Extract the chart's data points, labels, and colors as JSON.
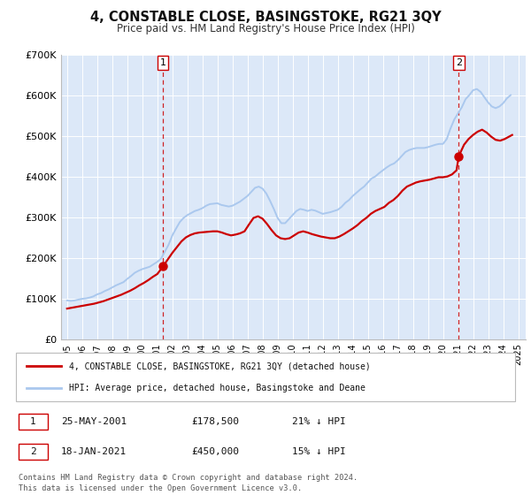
{
  "title": "4, CONSTABLE CLOSE, BASINGSTOKE, RG21 3QY",
  "subtitle": "Price paid vs. HM Land Registry's House Price Index (HPI)",
  "background_color": "#ffffff",
  "plot_bg_color": "#dce8f8",
  "grid_color": "#ffffff",
  "ylim": [
    0,
    700000
  ],
  "yticks": [
    0,
    100000,
    200000,
    300000,
    400000,
    500000,
    600000,
    700000
  ],
  "ytick_labels": [
    "£0",
    "£100K",
    "£200K",
    "£300K",
    "£400K",
    "£500K",
    "£600K",
    "£700K"
  ],
  "xlim_start": 1994.6,
  "xlim_end": 2025.5,
  "xtick_years": [
    1995,
    1996,
    1997,
    1998,
    1999,
    2000,
    2001,
    2002,
    2003,
    2004,
    2005,
    2006,
    2007,
    2008,
    2009,
    2010,
    2011,
    2012,
    2013,
    2014,
    2015,
    2016,
    2017,
    2018,
    2019,
    2020,
    2021,
    2022,
    2023,
    2024,
    2025
  ],
  "hpi_color": "#aac8ee",
  "price_color": "#cc0000",
  "sale1_x": 2001.38,
  "sale1_y": 178500,
  "sale1_label": "1",
  "sale2_x": 2021.05,
  "sale2_y": 450000,
  "sale2_label": "2",
  "vline_color": "#cc0000",
  "dot_color": "#cc0000",
  "legend_label_price": "4, CONSTABLE CLOSE, BASINGSTOKE, RG21 3QY (detached house)",
  "legend_label_hpi": "HPI: Average price, detached house, Basingstoke and Deane",
  "table_row1_num": "1",
  "table_row1_date": "25-MAY-2001",
  "table_row1_price": "£178,500",
  "table_row1_hpi": "21% ↓ HPI",
  "table_row2_num": "2",
  "table_row2_date": "18-JAN-2021",
  "table_row2_price": "£450,000",
  "table_row2_hpi": "15% ↓ HPI",
  "footnote1": "Contains HM Land Registry data © Crown copyright and database right 2024.",
  "footnote2": "This data is licensed under the Open Government Licence v3.0.",
  "hpi_data_x": [
    1995.0,
    1995.25,
    1995.5,
    1995.75,
    1996.0,
    1996.25,
    1996.5,
    1996.75,
    1997.0,
    1997.25,
    1997.5,
    1997.75,
    1998.0,
    1998.25,
    1998.5,
    1998.75,
    1999.0,
    1999.25,
    1999.5,
    1999.75,
    2000.0,
    2000.25,
    2000.5,
    2000.75,
    2001.0,
    2001.25,
    2001.5,
    2001.75,
    2002.0,
    2002.25,
    2002.5,
    2002.75,
    2003.0,
    2003.25,
    2003.5,
    2003.75,
    2004.0,
    2004.25,
    2004.5,
    2004.75,
    2005.0,
    2005.25,
    2005.5,
    2005.75,
    2006.0,
    2006.25,
    2006.5,
    2006.75,
    2007.0,
    2007.25,
    2007.5,
    2007.75,
    2008.0,
    2008.25,
    2008.5,
    2008.75,
    2009.0,
    2009.25,
    2009.5,
    2009.75,
    2010.0,
    2010.25,
    2010.5,
    2010.75,
    2011.0,
    2011.25,
    2011.5,
    2011.75,
    2012.0,
    2012.25,
    2012.5,
    2012.75,
    2013.0,
    2013.25,
    2013.5,
    2013.75,
    2014.0,
    2014.25,
    2014.5,
    2014.75,
    2015.0,
    2015.25,
    2015.5,
    2015.75,
    2016.0,
    2016.25,
    2016.5,
    2016.75,
    2017.0,
    2017.25,
    2017.5,
    2017.75,
    2018.0,
    2018.25,
    2018.5,
    2018.75,
    2019.0,
    2019.25,
    2019.5,
    2019.75,
    2020.0,
    2020.25,
    2020.5,
    2020.75,
    2021.0,
    2021.25,
    2021.5,
    2021.75,
    2022.0,
    2022.25,
    2022.5,
    2022.75,
    2023.0,
    2023.25,
    2023.5,
    2023.75,
    2024.0,
    2024.25,
    2024.5
  ],
  "hpi_data_y": [
    95000,
    94000,
    95000,
    97000,
    99000,
    100000,
    102000,
    105000,
    110000,
    113000,
    118000,
    122000,
    127000,
    132000,
    136000,
    140000,
    148000,
    155000,
    163000,
    168000,
    172000,
    175000,
    178000,
    184000,
    190000,
    198000,
    215000,
    232000,
    255000,
    272000,
    288000,
    298000,
    305000,
    310000,
    315000,
    318000,
    322000,
    328000,
    332000,
    333000,
    334000,
    330000,
    328000,
    326000,
    328000,
    333000,
    338000,
    345000,
    352000,
    362000,
    372000,
    375000,
    370000,
    358000,
    340000,
    320000,
    298000,
    285000,
    285000,
    295000,
    305000,
    315000,
    320000,
    318000,
    315000,
    318000,
    316000,
    312000,
    308000,
    310000,
    312000,
    315000,
    318000,
    325000,
    335000,
    342000,
    352000,
    360000,
    368000,
    375000,
    385000,
    395000,
    400000,
    408000,
    415000,
    422000,
    428000,
    432000,
    440000,
    450000,
    460000,
    465000,
    468000,
    470000,
    470000,
    470000,
    472000,
    475000,
    478000,
    480000,
    480000,
    492000,
    518000,
    540000,
    555000,
    570000,
    590000,
    600000,
    612000,
    615000,
    608000,
    595000,
    582000,
    572000,
    568000,
    572000,
    580000,
    592000,
    600000
  ],
  "price_data_x": [
    1995.0,
    1995.3,
    1995.6,
    1995.9,
    1996.2,
    1996.5,
    1996.8,
    1997.1,
    1997.4,
    1997.7,
    1998.0,
    1998.3,
    1998.6,
    1998.9,
    1999.2,
    1999.5,
    1999.8,
    2000.1,
    2000.4,
    2000.7,
    2001.0,
    2001.38,
    2001.7,
    2002.0,
    2002.3,
    2002.6,
    2002.9,
    2003.2,
    2003.5,
    2003.8,
    2004.1,
    2004.4,
    2004.7,
    2005.0,
    2005.3,
    2005.6,
    2005.9,
    2006.2,
    2006.5,
    2006.8,
    2007.1,
    2007.4,
    2007.7,
    2008.0,
    2008.3,
    2008.6,
    2008.9,
    2009.2,
    2009.5,
    2009.8,
    2010.1,
    2010.4,
    2010.7,
    2011.0,
    2011.3,
    2011.6,
    2011.9,
    2012.2,
    2012.5,
    2012.8,
    2013.1,
    2013.4,
    2013.7,
    2014.0,
    2014.3,
    2014.6,
    2014.9,
    2015.2,
    2015.5,
    2015.8,
    2016.1,
    2016.4,
    2016.7,
    2017.0,
    2017.3,
    2017.6,
    2017.9,
    2018.2,
    2018.5,
    2018.8,
    2019.1,
    2019.4,
    2019.7,
    2020.0,
    2020.3,
    2020.6,
    2020.9,
    2021.05,
    2021.4,
    2021.7,
    2022.0,
    2022.3,
    2022.6,
    2022.9,
    2023.2,
    2023.5,
    2023.8,
    2024.1,
    2024.4,
    2024.6
  ],
  "price_data_y": [
    75000,
    77000,
    79000,
    81000,
    83000,
    85000,
    87000,
    90000,
    93000,
    97000,
    101000,
    105000,
    109000,
    114000,
    119000,
    125000,
    132000,
    138000,
    145000,
    153000,
    160000,
    178500,
    196000,
    212000,
    226000,
    240000,
    250000,
    256000,
    260000,
    262000,
    263000,
    264000,
    265000,
    265000,
    262000,
    258000,
    255000,
    257000,
    260000,
    265000,
    282000,
    298000,
    302000,
    296000,
    283000,
    268000,
    255000,
    248000,
    246000,
    248000,
    255000,
    262000,
    265000,
    262000,
    258000,
    255000,
    252000,
    250000,
    248000,
    248000,
    252000,
    258000,
    265000,
    272000,
    280000,
    290000,
    298000,
    308000,
    315000,
    320000,
    325000,
    335000,
    342000,
    352000,
    365000,
    375000,
    380000,
    385000,
    388000,
    390000,
    392000,
    395000,
    398000,
    398000,
    400000,
    405000,
    415000,
    450000,
    478000,
    492000,
    502000,
    510000,
    515000,
    508000,
    498000,
    490000,
    488000,
    492000,
    498000,
    502000
  ]
}
